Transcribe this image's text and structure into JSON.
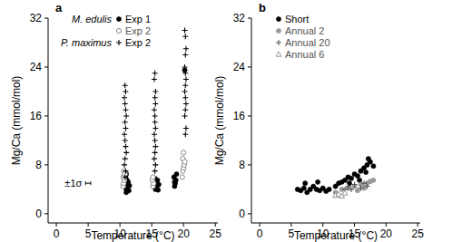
{
  "chart_data": [
    {
      "type": "scatter",
      "panel_label": "a",
      "xlabel": "Temperature (°C)",
      "ylabel": "Mg/Ca (mmol/mol)",
      "xlim": [
        -1.3,
        25.4
      ],
      "ylim": [
        -1.5,
        32
      ],
      "xticks": [
        0,
        5,
        10,
        15,
        20,
        25
      ],
      "yticks": [
        0,
        8,
        16,
        24,
        32
      ],
      "legend": "upper left",
      "error_bar": {
        "label": "±1σ",
        "x": 5,
        "y": 5,
        "xerr": 0.4
      },
      "series": [
        {
          "name": "Exp 1",
          "group": "M. edulis",
          "color": "#000000",
          "marker": "circle",
          "x": [
            11,
            11,
            11,
            11,
            11.1,
            10.9,
            11,
            11.2,
            11.4,
            11.5,
            11.3,
            15.6,
            15.8,
            15.7,
            15.9,
            16,
            16.1,
            15.5,
            18.6,
            18.7,
            18.8,
            18.5,
            18.9,
            18.6,
            20.2
          ],
          "values": [
            3.5,
            4,
            4.5,
            5,
            5.5,
            6,
            6.5,
            4.2,
            3.8,
            4.6,
            5.2,
            4,
            4.5,
            5,
            5.5,
            3.9,
            4.8,
            5.8,
            4.5,
            5,
            5.5,
            6,
            6.5,
            5.2,
            23.5
          ]
        },
        {
          "name": "Exp 2",
          "color": "#888888",
          "marker": "open_circle",
          "x": [
            10.5,
            10.6,
            10.7,
            10.5,
            10.6,
            10.8,
            15.2,
            15.3,
            15.1,
            15.2,
            19.8,
            19.9,
            20,
            20.1,
            19.9,
            20,
            20.2
          ],
          "values": [
            4.5,
            5,
            5.5,
            6,
            7,
            6.5,
            4.5,
            5,
            5.5,
            6,
            6,
            7,
            7.5,
            8,
            9,
            10,
            8.5
          ]
        },
        {
          "name": "Exp 2",
          "group": "P. maximus",
          "color": "#000000",
          "marker": "plus",
          "x": [
            10.8,
            10.9,
            10.7,
            10.8,
            11,
            10.9,
            10.8,
            10.7,
            10.9,
            10.8,
            11,
            10.9,
            10.8,
            10.7,
            10.9,
            10.8,
            15.5,
            15.6,
            15.4,
            15.5,
            15.6,
            15.5,
            15.4,
            15.6,
            15.5,
            15.5,
            15.4,
            15.6,
            15.5,
            15.6,
            15.4,
            15.5,
            20.3,
            20.4,
            20.2,
            20.3,
            20.4,
            20.3,
            20.2,
            20.3,
            20.4,
            20.3,
            20.2,
            20.3,
            20.4,
            20.3,
            20.2
          ],
          "values": [
            6,
            7,
            8,
            9,
            10,
            11,
            12,
            13,
            14,
            15,
            16,
            17,
            18,
            19,
            20,
            21,
            7,
            8,
            9,
            10,
            11,
            12,
            13,
            14,
            15,
            16,
            17,
            18,
            19,
            20,
            22,
            23,
            13,
            14,
            16,
            17,
            18,
            19,
            20,
            21,
            22,
            23,
            24,
            26,
            27,
            29,
            30
          ]
        }
      ]
    },
    {
      "type": "scatter",
      "panel_label": "b",
      "xlabel": "Temperature (°C)",
      "ylabel": "Mg/Ca (mmol/mol)",
      "xlim": [
        -1.3,
        25.4
      ],
      "ylim": [
        -1.5,
        32
      ],
      "xticks": [
        0,
        5,
        10,
        15,
        20,
        25
      ],
      "yticks": [
        0,
        8,
        16,
        24,
        32
      ],
      "legend": "upper left",
      "series": [
        {
          "name": "Short",
          "color": "#000000",
          "marker": "circle",
          "x": [
            6,
            6.5,
            7,
            7.5,
            8,
            8.5,
            9,
            9.5,
            10,
            10.5,
            11,
            12,
            12.5,
            13,
            13.5,
            14,
            14.5,
            15,
            15.5,
            16,
            16.5,
            17,
            17.2,
            17.5,
            18,
            16.8,
            15.8,
            14.2,
            7.2,
            9.2
          ],
          "values": [
            4,
            3.8,
            4.2,
            3.5,
            4,
            4.5,
            4,
            3.8,
            4.2,
            3.7,
            4,
            4.5,
            5,
            5.2,
            5.5,
            6,
            5.8,
            6.5,
            6.2,
            7,
            7.5,
            8,
            9,
            8.5,
            7.8,
            6.8,
            5.5,
            5,
            5,
            5.2
          ]
        },
        {
          "name": "Annual 2",
          "color": "#999999",
          "marker": "circle",
          "x": [
            12,
            13,
            14,
            15,
            16,
            17,
            17.5,
            18,
            16.5,
            15.5
          ],
          "values": [
            3.5,
            4,
            4.2,
            4.5,
            4.8,
            5,
            5.3,
            5.5,
            4.2,
            3.8
          ]
        },
        {
          "name": "Annual 20",
          "color": "#555555",
          "marker": "plus",
          "x": [
            13.5,
            14,
            14.5,
            15,
            16,
            16.5,
            17
          ],
          "values": [
            4,
            4.5,
            4,
            4.8,
            4.2,
            5,
            4.5
          ]
        },
        {
          "name": "Annual 6",
          "color": "#999999",
          "marker": "open_triangle",
          "x": [
            12,
            12.5,
            13,
            13.5
          ],
          "values": [
            3,
            3.2,
            2.9,
            3.4
          ]
        }
      ]
    }
  ]
}
